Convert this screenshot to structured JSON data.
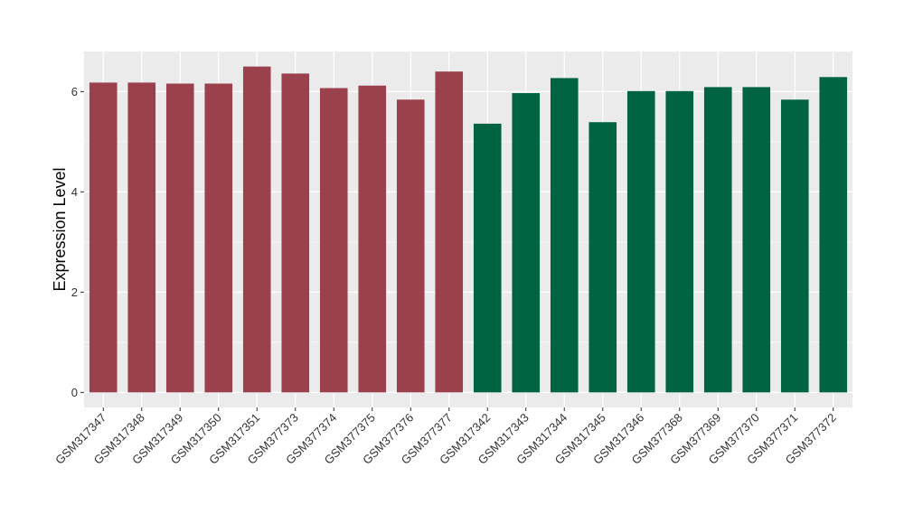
{
  "chart_data": {
    "type": "bar",
    "title": "",
    "xlabel": "",
    "ylabel": "Expression Level",
    "ylim": [
      -0.3,
      6.8
    ],
    "yticks": [
      0,
      2,
      4,
      6
    ],
    "grid": true,
    "legend": "none",
    "categories": [
      "GSM317347",
      "GSM317348",
      "GSM317349",
      "GSM317350",
      "GSM317351",
      "GSM377373",
      "GSM377374",
      "GSM377375",
      "GSM377376",
      "GSM377377",
      "GSM317342",
      "GSM317343",
      "GSM317344",
      "GSM317345",
      "GSM317346",
      "GSM377368",
      "GSM377369",
      "GSM377370",
      "GSM377371",
      "GSM377372"
    ],
    "values": [
      6.18,
      6.18,
      6.16,
      6.16,
      6.5,
      6.36,
      6.07,
      6.12,
      5.84,
      6.4,
      5.36,
      5.97,
      6.27,
      5.39,
      6.01,
      6.01,
      6.09,
      6.09,
      5.84,
      6.29
    ],
    "groups": [
      0,
      0,
      0,
      0,
      0,
      0,
      0,
      0,
      0,
      0,
      1,
      1,
      1,
      1,
      1,
      1,
      1,
      1,
      1,
      1
    ],
    "group_colors": [
      "#9b414e",
      "#006443"
    ],
    "panel_background": "#ebebeb",
    "grid_color": "#ffffff"
  }
}
